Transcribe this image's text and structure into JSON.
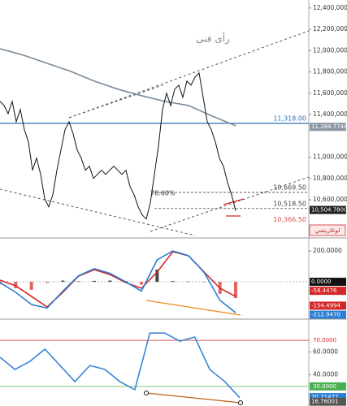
{
  "main": {
    "type": "line",
    "title": "رأى فنى",
    "fib_label": "78.60%",
    "scale_button": "لوغاريتمي",
    "ylim": [
      10250000,
      12475000
    ],
    "yticks": [
      {
        "value": 12400000,
        "label": "12,400,000"
      },
      {
        "value": 12200000,
        "label": "12,200,000"
      },
      {
        "value": 12000000,
        "label": "12,000,000"
      },
      {
        "value": 11800000,
        "label": "11,800,000"
      },
      {
        "value": 11600000,
        "label": "11,600,000"
      },
      {
        "value": 11400000,
        "label": "11,400,000"
      },
      {
        "value": 11000000,
        "label": "11,000,000"
      },
      {
        "value": 10800000,
        "label": "10,800,000"
      },
      {
        "value": 10600000,
        "label": "10,600,000"
      }
    ],
    "price": {
      "color": "#111111",
      "values": [
        11523000,
        11485000,
        11409000,
        11523000,
        11333000,
        11447000,
        11257000,
        11143000,
        10877000,
        10991000,
        10839000,
        10610000,
        10534000,
        10648000,
        10877000,
        11067000,
        11257000,
        11333000,
        11219000,
        11067000,
        10991000,
        10877000,
        10915000,
        10801000,
        10839000,
        10877000,
        10839000,
        10877000,
        10915000,
        10877000,
        10839000,
        10877000,
        10724000,
        10648000,
        10534000,
        10458000,
        10420000,
        10572000,
        10839000,
        11105000,
        11447000,
        11600000,
        11485000,
        11638000,
        11676000,
        11562000,
        11714000,
        11676000,
        11752000,
        11790000,
        11562000,
        11333000,
        11257000,
        11143000,
        10991000,
        10915000,
        10763000,
        10648000,
        10496000
      ]
    },
    "moving_average": {
      "color": "#7a8a99",
      "values": [
        12018000,
        11957000,
        11881000,
        11805000,
        11714000,
        11638000,
        11577000,
        11523000,
        11485000,
        11386000,
        11295000
      ]
    },
    "levels": [
      {
        "value": 11318000,
        "label": "11,318.00",
        "color": "#2f6db5"
      },
      {
        "value": 10669500,
        "label": "10,669.50",
        "color": "#444444"
      },
      {
        "value": 10518500,
        "label": "10,518.50",
        "color": "#444444"
      },
      {
        "value": 10366500,
        "label": "10,366.50",
        "color": "#d9534f"
      }
    ],
    "tags": [
      {
        "value": 11284774.8,
        "label": "11,284.7748",
        "color": "#8a96a3"
      },
      {
        "value": 10504780,
        "label": "10,504.7800",
        "color": "#222222"
      }
    ]
  },
  "macd": {
    "type": "line",
    "ylim": [
      -226,
      274
    ],
    "yticks": [
      {
        "value": 200,
        "label": "200.0000"
      }
    ],
    "macd_line": {
      "color": "#2a7fd4",
      "values": [
        -5,
        -68,
        -147,
        -170,
        -60,
        40,
        85,
        55,
        0,
        -60,
        142,
        200,
        170,
        60,
        -120,
        -200
      ]
    },
    "signal": {
      "color": "#d62728",
      "values": [
        11,
        -26,
        -95,
        -163,
        -68,
        37,
        79,
        47,
        -5,
        -42,
        63,
        195,
        168,
        63,
        -42,
        -95
      ]
    },
    "histogram": {
      "color": "#e06666",
      "values": [
        -16,
        -42,
        -52,
        -7,
        8,
        3,
        6,
        8,
        5,
        -18,
        79,
        5,
        2,
        -3,
        -78,
        -105
      ]
    },
    "tags": [
      {
        "value": 0,
        "label": "0.0000",
        "color": "#111111"
      },
      {
        "value": -58.4476,
        "label": "-58.4476",
        "color": "#d62728"
      },
      {
        "value": -154.4994,
        "label": "-154.4994",
        "color": "#d62728"
      },
      {
        "value": -212.947,
        "label": "-212.9470",
        "color": "#2a7fd4"
      }
    ]
  },
  "rsi": {
    "type": "line",
    "ylim": [
      13,
      87
    ],
    "yticks": [
      {
        "value": 60,
        "label": "60.0000"
      },
      {
        "value": 40,
        "label": "40.0000"
      }
    ],
    "line": {
      "color": "#3a86d8",
      "values": [
        55.3,
        44.7,
        51.8,
        62.3,
        48.2,
        34.2,
        48.2,
        44.7,
        34.2,
        27.2,
        76.3,
        76.3,
        69.3,
        72.8,
        44.7,
        34.2,
        20.2
      ]
    },
    "levels": [
      {
        "value": 70,
        "label": "70.0000",
        "color": "#d62728"
      },
      {
        "value": 30,
        "label": "30.0000",
        "color": "#4caf50"
      }
    ],
    "tags": [
      {
        "value": 20.71477,
        "label": "20.71477",
        "color": "#2a7fd4"
      },
      {
        "value": 16.76001,
        "label": "16.76001",
        "color": "#555555"
      }
    ]
  }
}
